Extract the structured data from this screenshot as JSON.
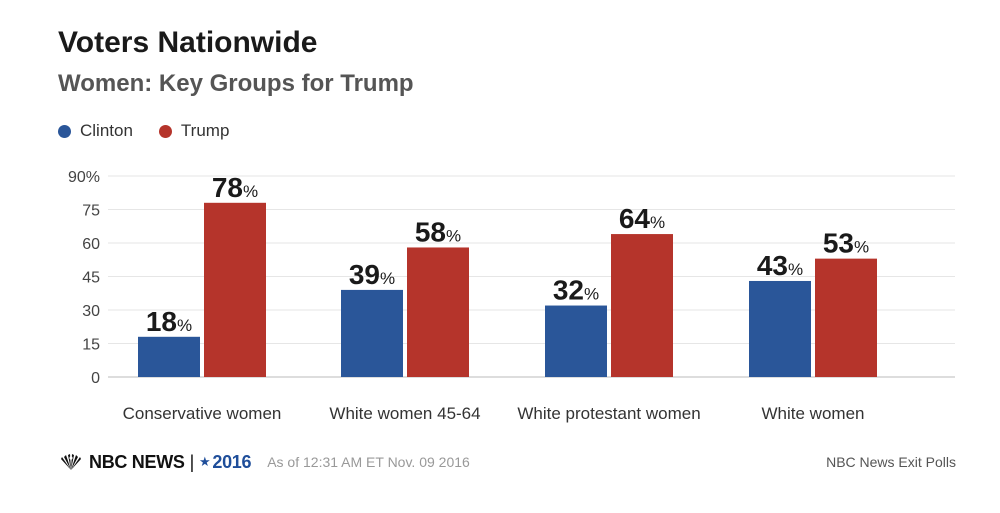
{
  "title": "Voters Nationwide",
  "subtitle": "Women: Key Groups for Trump",
  "legend": [
    {
      "name": "Clinton",
      "color": "#2a5699"
    },
    {
      "name": "Trump",
      "color": "#b5342b"
    }
  ],
  "footer": {
    "logo": "NBC NEWS",
    "separator": "|",
    "star": "★",
    "year": "2016",
    "as_of": "As of 12:31 AM ET Nov. 09 2016",
    "source": "NBC News Exit Polls"
  },
  "chart_data": {
    "type": "bar",
    "categories": [
      "Conservative women",
      "White women 45-64",
      "White protestant women",
      "White women"
    ],
    "series": [
      {
        "name": "Clinton",
        "color": "#2a5699",
        "values": [
          18,
          39,
          32,
          43
        ]
      },
      {
        "name": "Trump",
        "color": "#b5342b",
        "values": [
          78,
          58,
          64,
          53
        ]
      }
    ],
    "yticks": [
      "90%",
      "75",
      "60",
      "45",
      "30",
      "15",
      "0"
    ],
    "ylim": [
      0,
      90
    ],
    "value_suffix": "%",
    "grid": true
  }
}
